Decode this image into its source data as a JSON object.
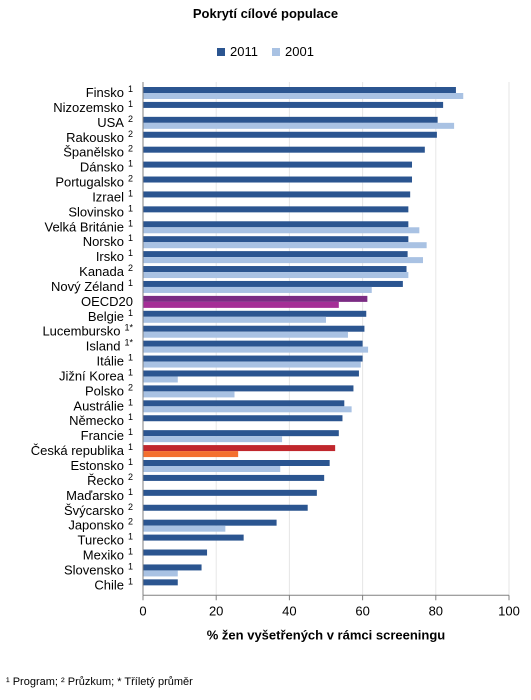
{
  "chart_data": {
    "type": "bar",
    "orientation": "horizontal",
    "title": "Pokrytí cílové populace",
    "xlabel": "% žen vyšetřených v rámci screeningu",
    "xlim": [
      0,
      100
    ],
    "xticks": [
      "0",
      "20",
      "40",
      "60",
      "80",
      "100"
    ],
    "legend_position": "top",
    "categories": [
      {
        "name": "Finsko",
        "note": "1"
      },
      {
        "name": "Nizozemsko",
        "note": "1"
      },
      {
        "name": "USA",
        "note": "2"
      },
      {
        "name": "Rakousko",
        "note": "2"
      },
      {
        "name": "Španělsko",
        "note": "2"
      },
      {
        "name": "Dánsko",
        "note": "1"
      },
      {
        "name": "Portugalsko",
        "note": "2"
      },
      {
        "name": "Izrael",
        "note": "1"
      },
      {
        "name": "Slovinsko",
        "note": "1"
      },
      {
        "name": "Velká Británie",
        "note": "1"
      },
      {
        "name": "Norsko",
        "note": "1"
      },
      {
        "name": "Irsko",
        "note": "1"
      },
      {
        "name": "Kanada",
        "note": "2"
      },
      {
        "name": "Nový Zéland",
        "note": "1"
      },
      {
        "name": "OECD20",
        "note": ""
      },
      {
        "name": "Belgie",
        "note": "1"
      },
      {
        "name": "Lucembursko",
        "note": "1*"
      },
      {
        "name": "Island",
        "note": "1*"
      },
      {
        "name": "Itálie",
        "note": "1"
      },
      {
        "name": "Jižní Korea",
        "note": "1"
      },
      {
        "name": "Polsko",
        "note": "2"
      },
      {
        "name": "Austrálie",
        "note": "1"
      },
      {
        "name": "Německo",
        "note": "1"
      },
      {
        "name": "Francie",
        "note": "1"
      },
      {
        "name": "Česká republika",
        "note": "1"
      },
      {
        "name": "Estonsko",
        "note": "1"
      },
      {
        "name": "Řecko",
        "note": "2"
      },
      {
        "name": "Maďarsko",
        "note": "1"
      },
      {
        "name": "Švýcarsko",
        "note": "2"
      },
      {
        "name": "Japonsko",
        "note": "2"
      },
      {
        "name": "Turecko",
        "note": "1"
      },
      {
        "name": "Mexiko",
        "note": "1"
      },
      {
        "name": "Slovensko",
        "note": "1"
      },
      {
        "name": "Chile",
        "note": "1"
      }
    ],
    "series": [
      {
        "name": "2011",
        "color": "#2B5590",
        "values": [
          85.5,
          82,
          80.5,
          80.3,
          77,
          73.5,
          73.5,
          73,
          72.5,
          72.5,
          72.5,
          72.3,
          72,
          71,
          61.3,
          61,
          60.5,
          60,
          60,
          59,
          57.5,
          55,
          54.5,
          53.5,
          52.5,
          51,
          49.5,
          47.5,
          45,
          36.5,
          27.5,
          17.5,
          16,
          9.5
        ]
      },
      {
        "name": "2001",
        "color": "#A9C2E3",
        "values": [
          87.5,
          null,
          85,
          null,
          null,
          null,
          null,
          null,
          null,
          75.5,
          77.5,
          76.5,
          72.5,
          62.5,
          53.5,
          50,
          56,
          61.5,
          59.5,
          9.5,
          25,
          57,
          null,
          38,
          26,
          37.5,
          null,
          null,
          null,
          22.5,
          null,
          null,
          9.5,
          null
        ]
      }
    ],
    "highlight": {
      "OECD20": {
        "2011": "#7B2C83",
        "2001": "#A52E96"
      },
      "Česká republika": {
        "2011": "#C0272D",
        "2001": "#F4702F"
      }
    }
  },
  "legend": [
    {
      "label": "2011",
      "color": "#2B5590"
    },
    {
      "label": "2001",
      "color": "#A9C2E3"
    }
  ],
  "footnote": "¹ Program; ² Průzkum; * Tříletý průměr"
}
